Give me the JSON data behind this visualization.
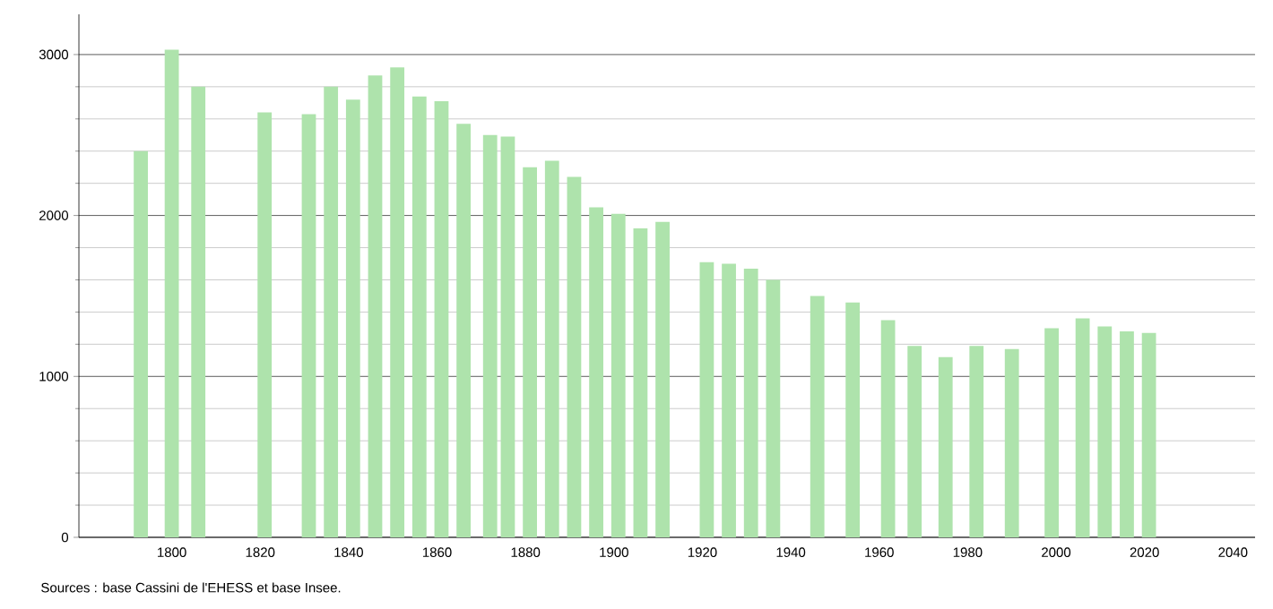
{
  "chart_data": {
    "type": "bar",
    "x": [
      1793,
      1800,
      1806,
      1821,
      1831,
      1836,
      1841,
      1846,
      1851,
      1856,
      1861,
      1866,
      1872,
      1876,
      1881,
      1886,
      1891,
      1896,
      1901,
      1906,
      1911,
      1921,
      1926,
      1931,
      1936,
      1946,
      1954,
      1962,
      1968,
      1975,
      1982,
      1990,
      1999,
      2006,
      2011,
      2016,
      2021
    ],
    "values": [
      2400,
      3030,
      2800,
      2640,
      2630,
      2800,
      2720,
      2870,
      2920,
      2740,
      2710,
      2570,
      2500,
      2490,
      2300,
      2340,
      2240,
      2050,
      2010,
      1920,
      1960,
      1710,
      1700,
      1670,
      1600,
      1500,
      1460,
      1350,
      1190,
      1120,
      1190,
      1170,
      1300,
      1360,
      1310,
      1280,
      1270
    ],
    "color": "#aee3ac",
    "xlim": [
      1779,
      2045
    ],
    "xticks": [
      1800,
      1820,
      1840,
      1860,
      1880,
      1900,
      1920,
      1940,
      1960,
      1980,
      2000,
      2020,
      2040
    ],
    "ylim": [
      0,
      3250
    ],
    "yticks": [
      0,
      1000,
      2000,
      3000
    ],
    "grid": "y",
    "annotations": [
      "Sources : base Cassini de l'EHESS et base Insee."
    ]
  }
}
